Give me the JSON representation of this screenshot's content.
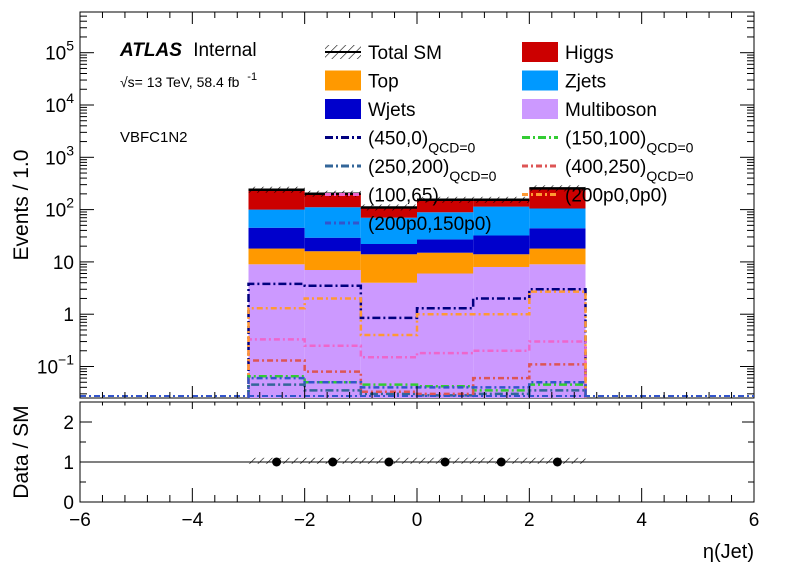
{
  "chart_data": [
    {
      "type": "bar",
      "stacked": true,
      "ylabel": "Events / 1.0",
      "yscale": "log",
      "ylim": [
        0.025,
        600000
      ],
      "xlim": [
        -6,
        6
      ],
      "bins": [
        [
          -3,
          -2
        ],
        [
          -2,
          -1
        ],
        [
          -1,
          0
        ],
        [
          0,
          1
        ],
        [
          1,
          2
        ],
        [
          2,
          3
        ]
      ],
      "atlas_label": {
        "bold": "ATLAS",
        "rest": "Internal"
      },
      "energy_label": "√s= 13 TeV, 58.4 fb",
      "energy_sup": "-1",
      "region_label": "VBFC1N2",
      "y_ticks": [
        {
          "v": 0.1,
          "base": "10",
          "exp": "−1"
        },
        {
          "v": 1,
          "base": "1",
          "exp": ""
        },
        {
          "v": 10,
          "base": "10",
          "exp": ""
        },
        {
          "v": 100,
          "base": "10",
          "exp": "2"
        },
        {
          "v": 1000,
          "base": "10",
          "exp": "3"
        },
        {
          "v": 10000,
          "base": "10",
          "exp": "4"
        },
        {
          "v": 100000,
          "base": "10",
          "exp": "5"
        }
      ],
      "stack": [
        {
          "name": "Multiboson",
          "color": "#cc99ff",
          "values": [
            9,
            7,
            4,
            6,
            8,
            9
          ]
        },
        {
          "name": "Top",
          "color": "#ff9900",
          "values": [
            9,
            9,
            10,
            9,
            6,
            9
          ]
        },
        {
          "name": "Wjets",
          "color": "#0000cc",
          "values": [
            27,
            13,
            8,
            12,
            18,
            26
          ]
        },
        {
          "name": "Zjets",
          "color": "#0099ff",
          "values": [
            55,
            82,
            48,
            62,
            82,
            61
          ]
        },
        {
          "name": "Higgs",
          "color": "#cc0000",
          "values": [
            140,
            90,
            40,
            65,
            40,
            150
          ]
        }
      ],
      "total_sm": {
        "name": "Total SM",
        "values": [
          240,
          201,
          110,
          154,
          154,
          255
        ]
      },
      "signals": [
        {
          "name": "(450,0)",
          "sub": "QCD=0",
          "color": "#00007f",
          "dash": "8,3,2,3",
          "values": [
            3.8,
            3.5,
            0.85,
            1.3,
            2.0,
            3.0
          ]
        },
        {
          "name": "(150,100)",
          "sub": "QCD=0",
          "color": "#33cc33",
          "dash": "8,3,2,3",
          "values": [
            0.065,
            0.05,
            0.045,
            0.042,
            0.035,
            0.045
          ]
        },
        {
          "name": "(250,200)",
          "sub": "QCD=0",
          "color": "#336699",
          "dash": "8,3,2,3",
          "values": [
            0.045,
            0.035,
            0.03,
            0.028,
            0.03,
            0.035
          ]
        },
        {
          "name": "(400,250)",
          "sub": "QCD=0",
          "color": "#dd5555",
          "dash": "6,3,2,3",
          "values": [
            0.13,
            0.08,
            0.033,
            0.03,
            0.06,
            0.11
          ]
        },
        {
          "name": "(100,65)",
          "sub": "",
          "color": "#ee66cc",
          "dash": "6,3,2,3",
          "values": [
            0.33,
            0.25,
            0.15,
            0.18,
            0.2,
            0.3
          ]
        },
        {
          "name": "(200p0,0p0)",
          "sub": "",
          "color": "#ff9933",
          "dash": "6,3,2,3",
          "values": [
            1.3,
            2.0,
            0.4,
            1.0,
            1.0,
            2.7
          ]
        },
        {
          "name": "(200p0,150p0)",
          "sub": "",
          "color": "#3355cc",
          "dash": "6,3,2,3",
          "values": [
            0.06,
            0.05,
            0.04,
            0.04,
            0.04,
            0.05
          ]
        }
      ]
    },
    {
      "type": "scatter",
      "xlabel": "η(Jet)",
      "ylabel": "Data / SM",
      "xlim": [
        -6,
        6
      ],
      "ylim": [
        0,
        2.5
      ],
      "x_ticks": [
        {
          "v": -6,
          "label": "−6"
        },
        {
          "v": -4,
          "label": "−4"
        },
        {
          "v": -2,
          "label": "−2"
        },
        {
          "v": 0,
          "label": "0"
        },
        {
          "v": 2,
          "label": "2"
        },
        {
          "v": 4,
          "label": "4"
        },
        {
          "v": 6,
          "label": "6"
        }
      ],
      "y_ticks": [
        {
          "v": 0,
          "label": "0"
        },
        {
          "v": 1,
          "label": "1"
        },
        {
          "v": 2,
          "label": "2"
        }
      ],
      "points": [
        {
          "x": -2.5,
          "y": 1
        },
        {
          "x": -1.5,
          "y": 1
        },
        {
          "x": -0.5,
          "y": 1
        },
        {
          "x": 0.5,
          "y": 1
        },
        {
          "x": 1.5,
          "y": 1
        },
        {
          "x": 2.5,
          "y": 1
        }
      ],
      "band": {
        "x": [
          -3,
          3
        ],
        "y": [
          0.97,
          1.03
        ]
      },
      "reference_line": 1
    }
  ]
}
